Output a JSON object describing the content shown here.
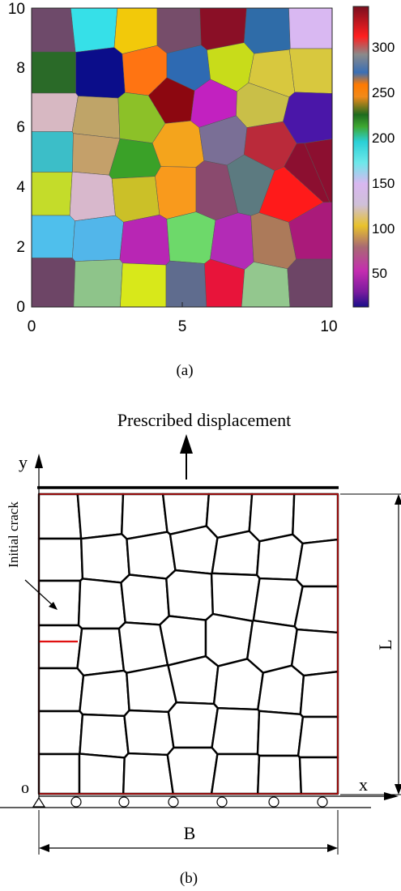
{
  "panel_a": {
    "caption": "(a)",
    "x_ticks": [
      "0",
      "5",
      "10"
    ],
    "y_ticks": [
      "0",
      "2",
      "4",
      "6",
      "8",
      "10"
    ],
    "colorbar_ticks": [
      "50",
      "100",
      "150",
      "200",
      "250",
      "300"
    ]
  },
  "panel_b": {
    "caption": "(b)",
    "top_label": "Prescribed displacement",
    "crack_label": "Initial crack",
    "y_axis": "y",
    "x_axis": "x",
    "origin": "o",
    "length_label": "L",
    "width_label": "B"
  },
  "colors": {
    "crack": "#e01010",
    "domain_border": "#e01010"
  }
}
